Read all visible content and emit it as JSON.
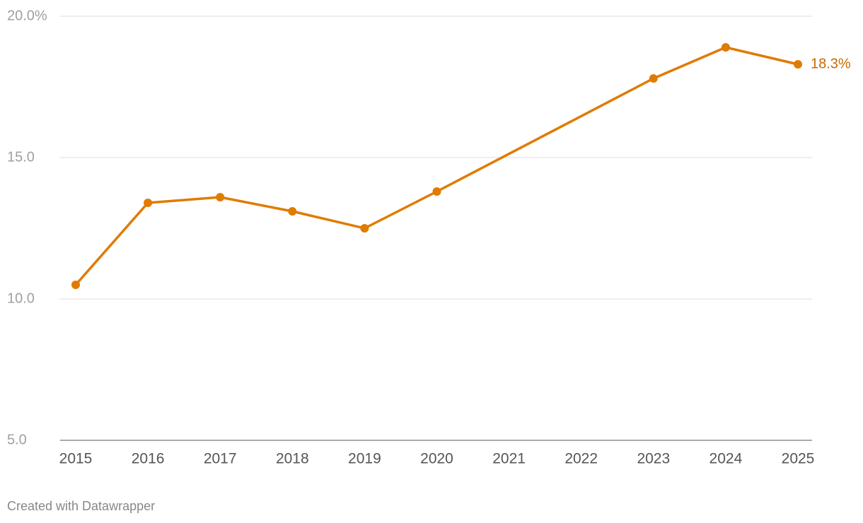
{
  "chart_data": {
    "type": "line",
    "x": [
      2015,
      2016,
      2017,
      2018,
      2019,
      2020,
      2023,
      2024,
      2025
    ],
    "series": [
      {
        "color": "#e07b00",
        "values": [
          10.5,
          13.4,
          13.6,
          13.1,
          12.5,
          13.8,
          17.8,
          18.9,
          18.3
        ],
        "value_labels": [
          null,
          null,
          null,
          null,
          null,
          null,
          null,
          null,
          "18.3%"
        ]
      }
    ],
    "xlim": [
      2015,
      2025
    ],
    "xticks": [
      2015,
      2016,
      2017,
      2018,
      2019,
      2020,
      2021,
      2022,
      2023,
      2024,
      2025
    ],
    "ylim": [
      5,
      20
    ],
    "yticks": [
      {
        "value": 5,
        "label": "5.0"
      },
      {
        "value": 10,
        "label": "10.0"
      },
      {
        "value": 15,
        "label": "15.0"
      },
      {
        "value": 20,
        "label": "20.0%"
      }
    ],
    "grid": true,
    "credit": "Created with Datawrapper"
  }
}
